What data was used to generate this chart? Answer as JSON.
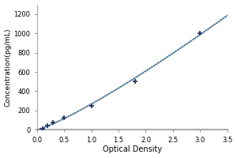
{
  "x_data": [
    0.1,
    0.2,
    0.3,
    0.5,
    1.0,
    1.8,
    3.0
  ],
  "y_data": [
    15,
    40,
    75,
    125,
    250,
    500,
    1000
  ],
  "xlabel": "Optical Density",
  "ylabel": "Concentration(pg/mL)",
  "xlim": [
    0,
    3.5
  ],
  "ylim": [
    0,
    1300
  ],
  "xticks": [
    0,
    0.5,
    1.0,
    1.5,
    2.0,
    2.5,
    3.0,
    3.5
  ],
  "yticks": [
    0,
    200,
    400,
    600,
    800,
    1000,
    1200
  ],
  "solid_line_color": "#8ab4d4",
  "dot_line_color": "#333333",
  "marker_color": "#1a2e5a",
  "bg_color": "#ffffff",
  "spine_color": "#aaaaaa",
  "tick_color": "#555555"
}
